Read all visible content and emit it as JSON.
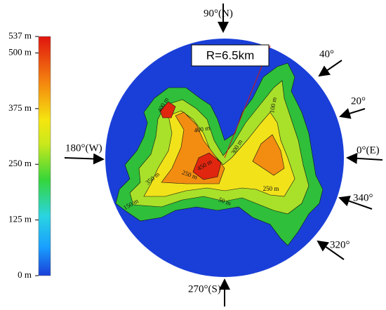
{
  "colorbar": {
    "range": [
      0,
      537
    ],
    "ticks": [
      {
        "value": 537,
        "label": "537 m"
      },
      {
        "value": 500,
        "label": "500 m"
      },
      {
        "value": 375,
        "label": "375 m"
      },
      {
        "value": 250,
        "label": "250 m"
      },
      {
        "value": 125,
        "label": "125 m"
      },
      {
        "value": 0,
        "label": "0 m"
      }
    ]
  },
  "radius_label": "R=6.5km",
  "directions": [
    "90°(N)",
    "40°",
    "20°",
    "0°(E)",
    "340°",
    "320°",
    "270°(S)",
    "180°(W)"
  ],
  "contour_labels": [
    "400 m",
    "400 m",
    "450 m",
    "350 m",
    "250 m",
    "150 m",
    "50 m",
    "300 m",
    "100 m",
    "250 m"
  ]
}
